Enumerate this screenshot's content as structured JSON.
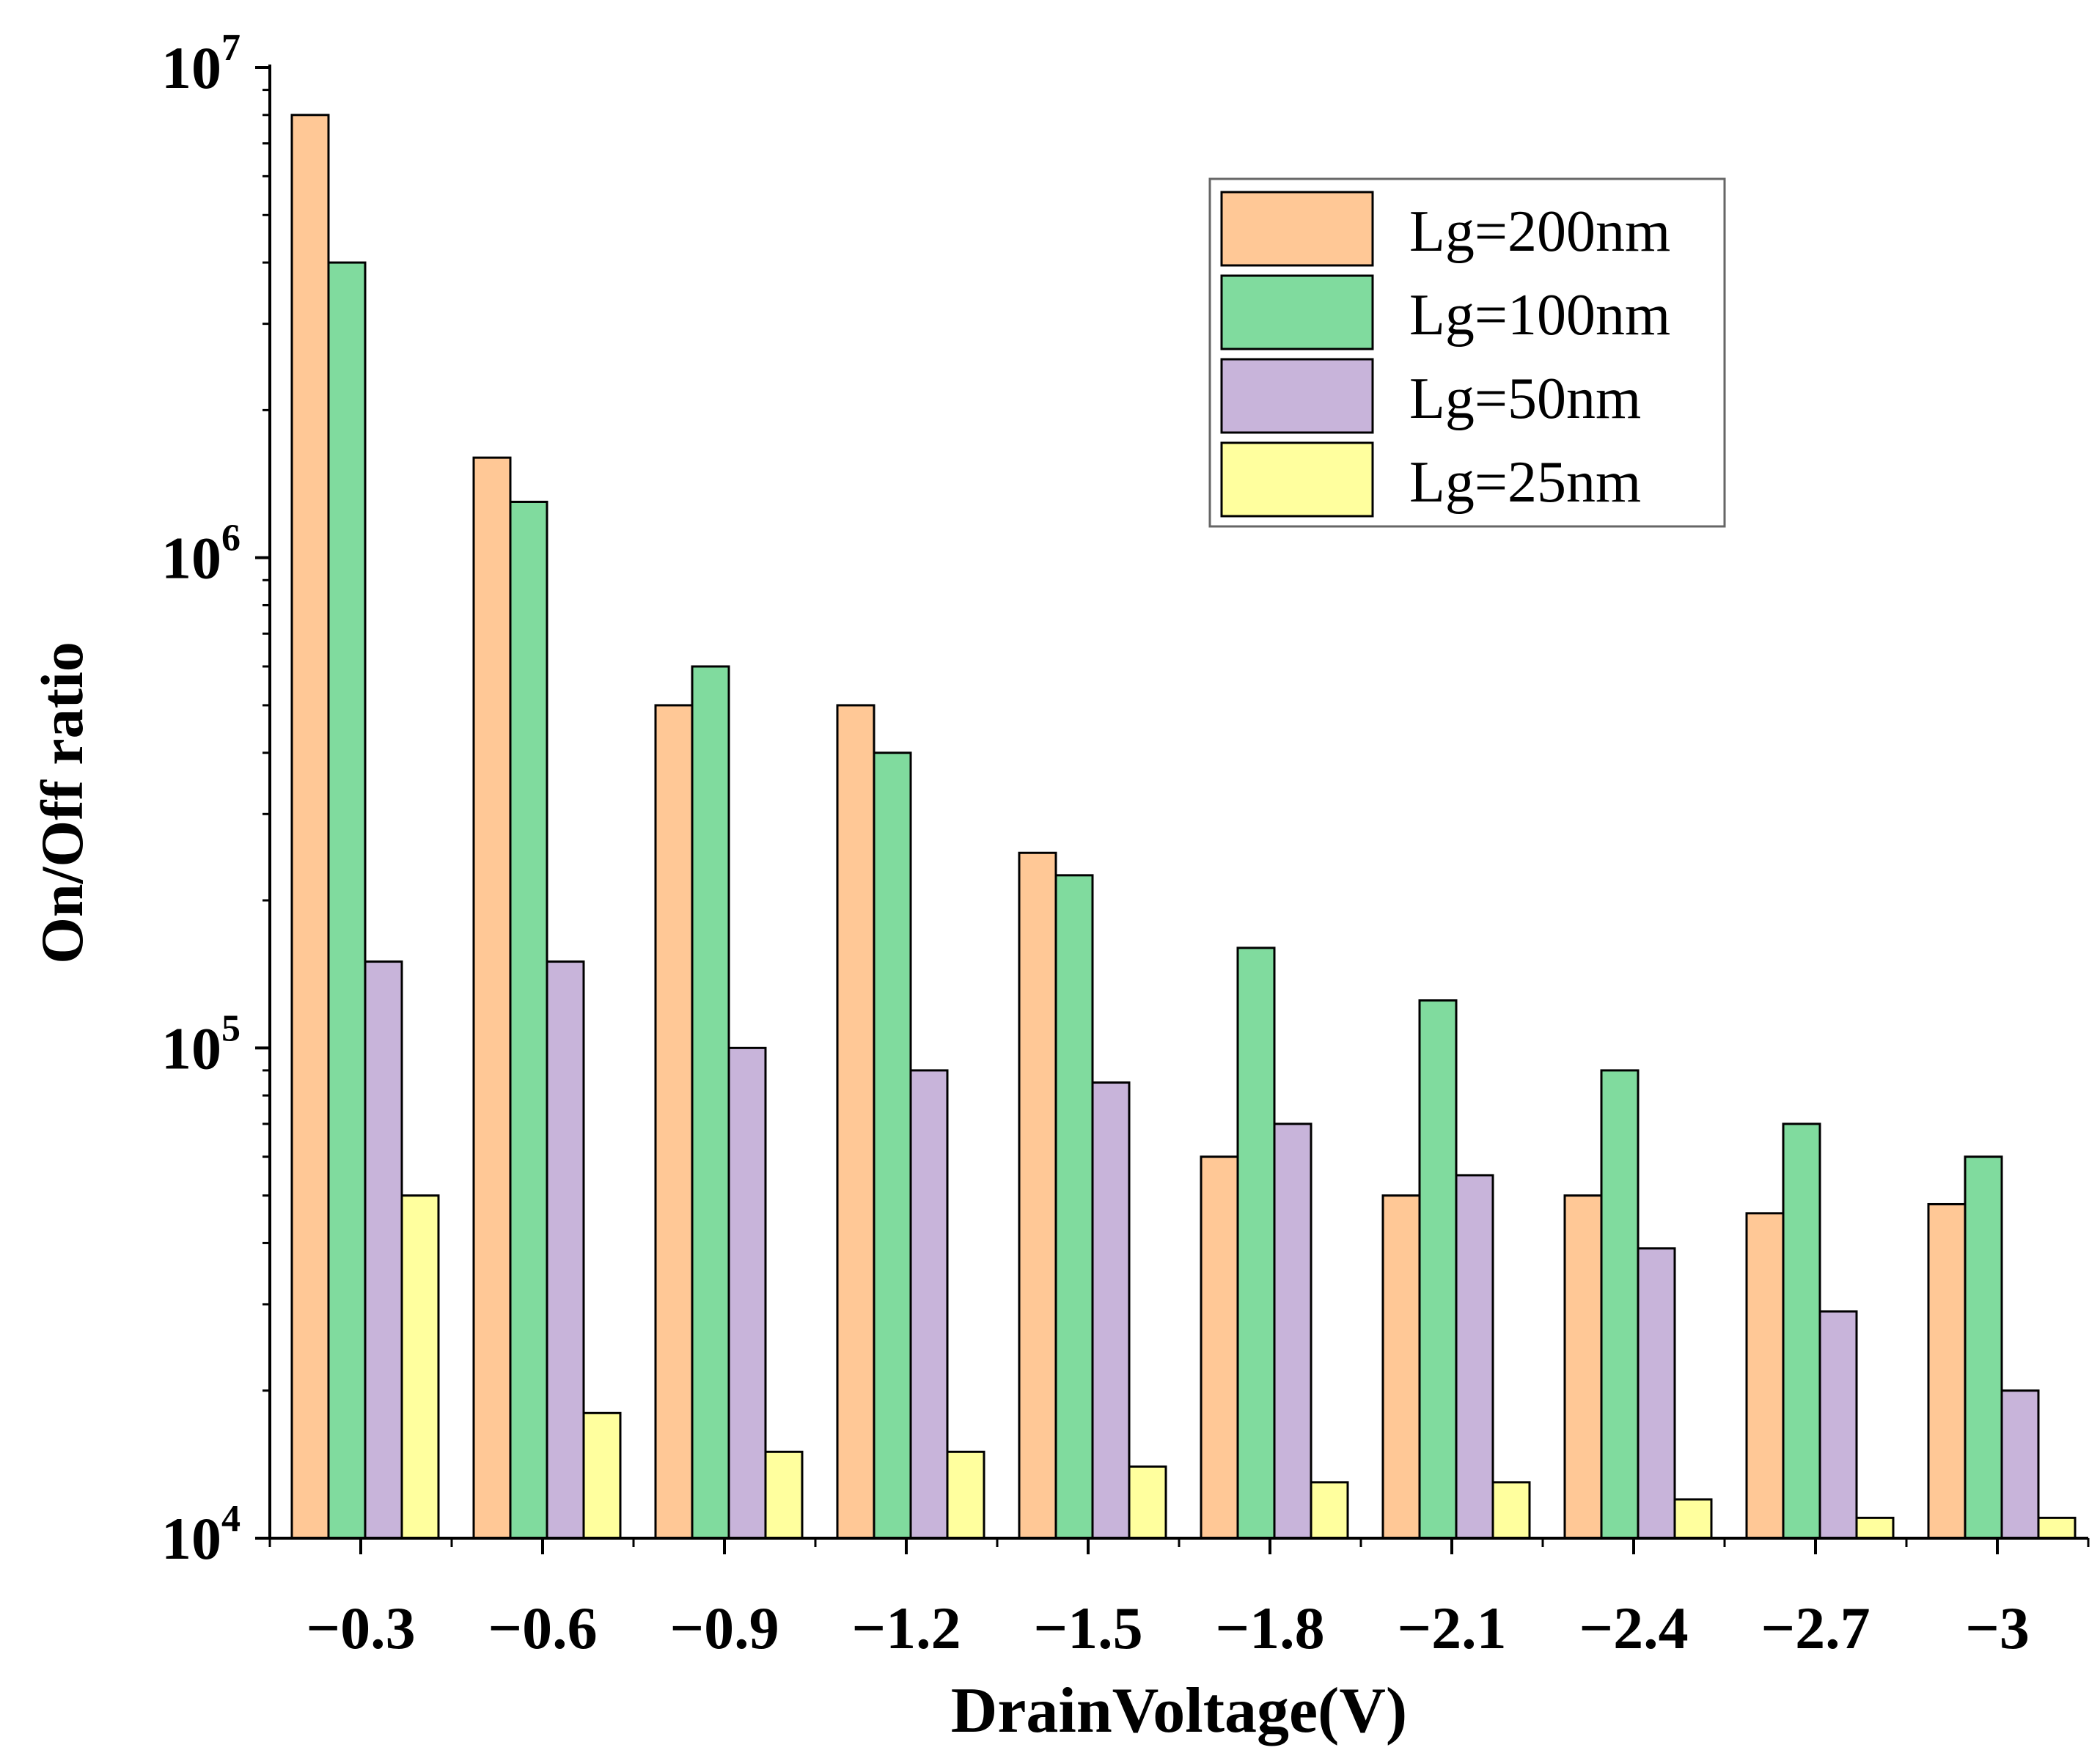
{
  "chart_data": {
    "type": "bar",
    "title": "",
    "xlabel": "DrainVoltage(V)",
    "ylabel": "On/Off ratio",
    "yscale": "log",
    "ylim": [
      10000,
      10000000
    ],
    "categories": [
      "−0.3",
      "−0.6",
      "−0.9",
      "−1.2",
      "−1.5",
      "−1.8",
      "−2.1",
      "−2.4",
      "−2.7",
      "−3"
    ],
    "yticks": [
      {
        "value": 10000,
        "base": "10",
        "exp": "4"
      },
      {
        "value": 100000,
        "base": "10",
        "exp": "5"
      },
      {
        "value": 1000000,
        "base": "10",
        "exp": "6"
      },
      {
        "value": 10000000,
        "base": "10",
        "exp": "7"
      }
    ],
    "legend_position": "top-right",
    "series": [
      {
        "name": "Lg=200nm",
        "color": "#FFC896",
        "values": [
          8000000,
          1600000,
          500000,
          500000,
          250000,
          60000,
          50000,
          50000,
          46000,
          48000
        ]
      },
      {
        "name": "Lg=100nm",
        "color": "#80DB9E",
        "values": [
          4000000,
          1300000,
          600000,
          400000,
          225000,
          160000,
          125000,
          90000,
          70000,
          60000
        ]
      },
      {
        "name": "Lg=50nm",
        "color": "#C8B4DA",
        "values": [
          150000,
          150000,
          100000,
          90000,
          85000,
          70000,
          55000,
          39000,
          29000,
          20000
        ]
      },
      {
        "name": "Lg=25nm",
        "color": "#FFFF9E",
        "values": [
          50000,
          18000,
          15000,
          15000,
          14000,
          13000,
          13000,
          12000,
          11000,
          11000
        ]
      }
    ]
  }
}
